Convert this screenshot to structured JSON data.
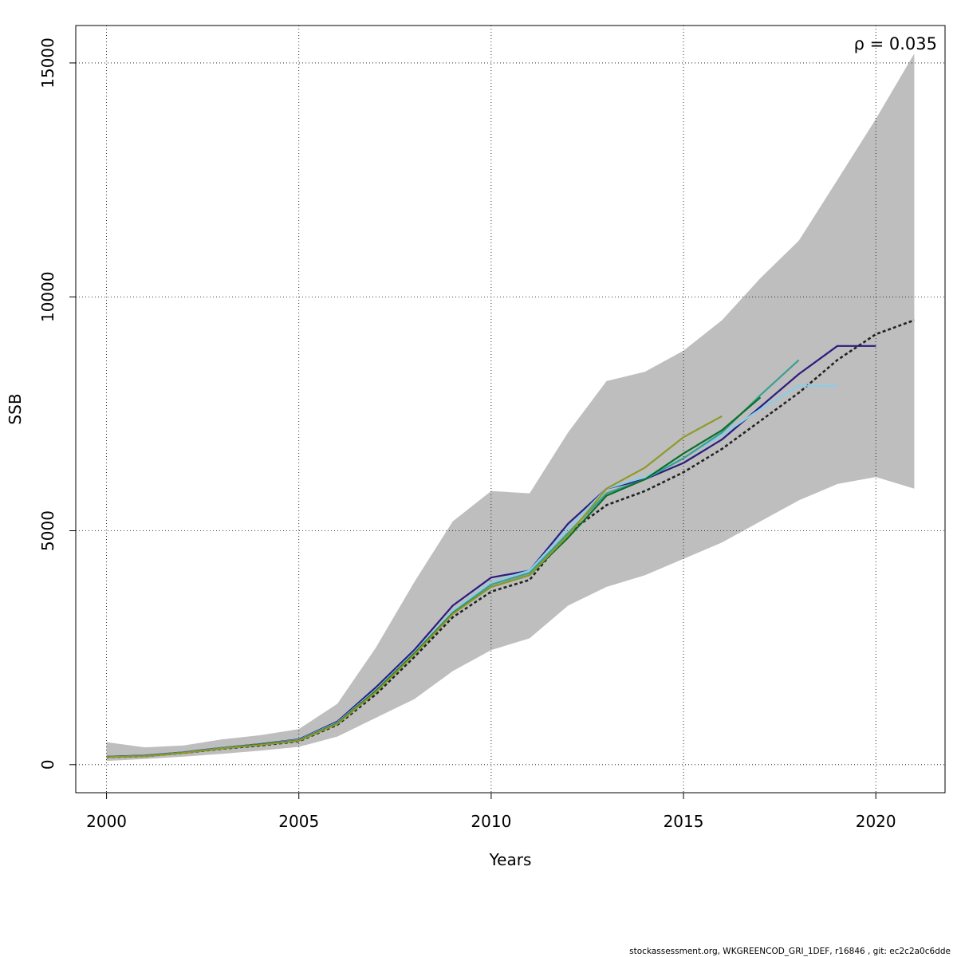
{
  "chart_data": {
    "type": "line",
    "xlabel": "Years",
    "ylabel": "SSB",
    "annotation": "ρ = 0.035",
    "xlim": [
      1999.2,
      2021.8
    ],
    "ylim": [
      -600,
      15800
    ],
    "xticks": [
      2000,
      2005,
      2010,
      2015,
      2020
    ],
    "yticks": [
      0,
      5000,
      10000,
      15000
    ],
    "grid": true,
    "confidence_band": {
      "x": [
        2000,
        2001,
        2002,
        2003,
        2004,
        2005,
        2006,
        2007,
        2008,
        2009,
        2010,
        2011,
        2012,
        2013,
        2014,
        2015,
        2016,
        2017,
        2018,
        2019,
        2020,
        2021
      ],
      "lower": [
        80,
        120,
        170,
        230,
        300,
        380,
        600,
        1000,
        1400,
        2000,
        2450,
        2700,
        3400,
        3800,
        4050,
        4400,
        4750,
        5200,
        5650,
        6000,
        6150,
        5900
      ],
      "upper": [
        480,
        370,
        410,
        540,
        630,
        760,
        1300,
        2500,
        3900,
        5200,
        5850,
        5800,
        7100,
        8200,
        8400,
        8850,
        9500,
        10400,
        11200,
        12500,
        13800,
        15200
      ],
      "color": "#bebebe"
    },
    "series": [
      {
        "color": "#222222",
        "dashed": true,
        "x": [
          2000,
          2001,
          2002,
          2003,
          2004,
          2005,
          2006,
          2007,
          2008,
          2009,
          2010,
          2011,
          2012,
          2013,
          2014,
          2015,
          2016,
          2017,
          2018,
          2019,
          2020,
          2021
        ],
        "values": [
          160,
          180,
          250,
          340,
          410,
          500,
          850,
          1500,
          2300,
          3150,
          3700,
          3950,
          4950,
          5550,
          5850,
          6250,
          6750,
          7350,
          7950,
          8650,
          9200,
          9500
        ]
      },
      {
        "color": "#2d1b7e",
        "dashed": false,
        "x": [
          2000,
          2001,
          2002,
          2003,
          2004,
          2005,
          2006,
          2007,
          2008,
          2009,
          2010,
          2011,
          2012,
          2013,
          2014,
          2015,
          2016,
          2017,
          2018,
          2019,
          2020
        ],
        "values": [
          170,
          195,
          265,
          360,
          440,
          540,
          920,
          1650,
          2450,
          3400,
          4000,
          4150,
          5150,
          5900,
          6100,
          6450,
          6950,
          7650,
          8350,
          8950,
          8950
        ]
      },
      {
        "color": "#87ceeb",
        "dashed": false,
        "x": [
          2000,
          2001,
          2002,
          2003,
          2004,
          2005,
          2006,
          2007,
          2008,
          2009,
          2010,
          2011,
          2012,
          2013,
          2014,
          2015,
          2016,
          2017,
          2018,
          2019
        ],
        "values": [
          165,
          190,
          260,
          355,
          435,
          530,
          900,
          1600,
          2400,
          3280,
          3900,
          4150,
          5050,
          5900,
          6150,
          6550,
          7050,
          7600,
          8100,
          8100
        ]
      },
      {
        "color": "#3aa08f",
        "dashed": false,
        "x": [
          2000,
          2001,
          2002,
          2003,
          2004,
          2005,
          2006,
          2007,
          2008,
          2009,
          2010,
          2011,
          2012,
          2013,
          2014,
          2015,
          2016,
          2017,
          2018
        ],
        "values": [
          165,
          185,
          255,
          350,
          430,
          520,
          890,
          1580,
          2380,
          3250,
          3850,
          4100,
          4950,
          5800,
          6100,
          6550,
          7100,
          7900,
          8650
        ]
      },
      {
        "color": "#0e6e2b",
        "dashed": false,
        "x": [
          2000,
          2001,
          2002,
          2003,
          2004,
          2005,
          2006,
          2007,
          2008,
          2009,
          2010,
          2011,
          2012,
          2013,
          2014,
          2015,
          2016,
          2017
        ],
        "values": [
          165,
          185,
          255,
          350,
          430,
          520,
          880,
          1570,
          2370,
          3230,
          3800,
          4050,
          4850,
          5750,
          6100,
          6650,
          7150,
          7850
        ]
      },
      {
        "color": "#8e9a2a",
        "dashed": false,
        "x": [
          2000,
          2001,
          2002,
          2003,
          2004,
          2005,
          2006,
          2007,
          2008,
          2009,
          2010,
          2011,
          2012,
          2013,
          2014,
          2015,
          2016
        ],
        "values": [
          160,
          180,
          250,
          345,
          420,
          510,
          870,
          1550,
          2350,
          3220,
          3800,
          4050,
          4900,
          5900,
          6350,
          7000,
          7450
        ]
      }
    ]
  },
  "footer": "stockassessment.org, WKGREENCOD_GRI_1DEF, r16846 , git: ec2c2a0c6dde"
}
